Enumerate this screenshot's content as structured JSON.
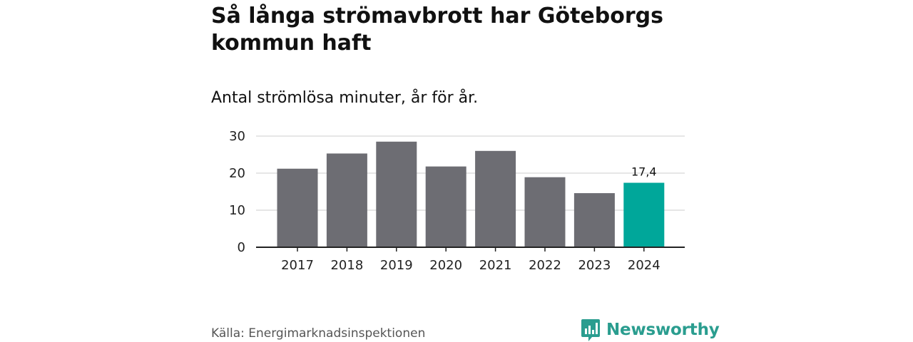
{
  "chart_data": {
    "type": "bar",
    "title": "Så långa strömavbrott har Göteborgs kommun haft",
    "subtitle": "Antal strömlösa minuter, år för år.",
    "categories": [
      "2017",
      "2018",
      "2019",
      "2020",
      "2021",
      "2022",
      "2023",
      "2024"
    ],
    "values": [
      21.2,
      25.3,
      28.5,
      21.8,
      26.0,
      18.9,
      14.6,
      17.4
    ],
    "highlight_index": 7,
    "highlight_label": "17,4",
    "yticks": [
      0,
      10,
      20,
      30
    ],
    "ylim": [
      0,
      30
    ],
    "xlabel": "",
    "ylabel": "",
    "colors": {
      "bar": "#6d6d73",
      "highlight": "#00a79a",
      "grid": "#dddddd",
      "axis": "#222222"
    }
  },
  "source": "Källa: Energimarknadsinspektionen",
  "brand": {
    "name": "Newsworthy",
    "icon": "newsworthy-logo-icon",
    "color": "#2a9d8f"
  }
}
